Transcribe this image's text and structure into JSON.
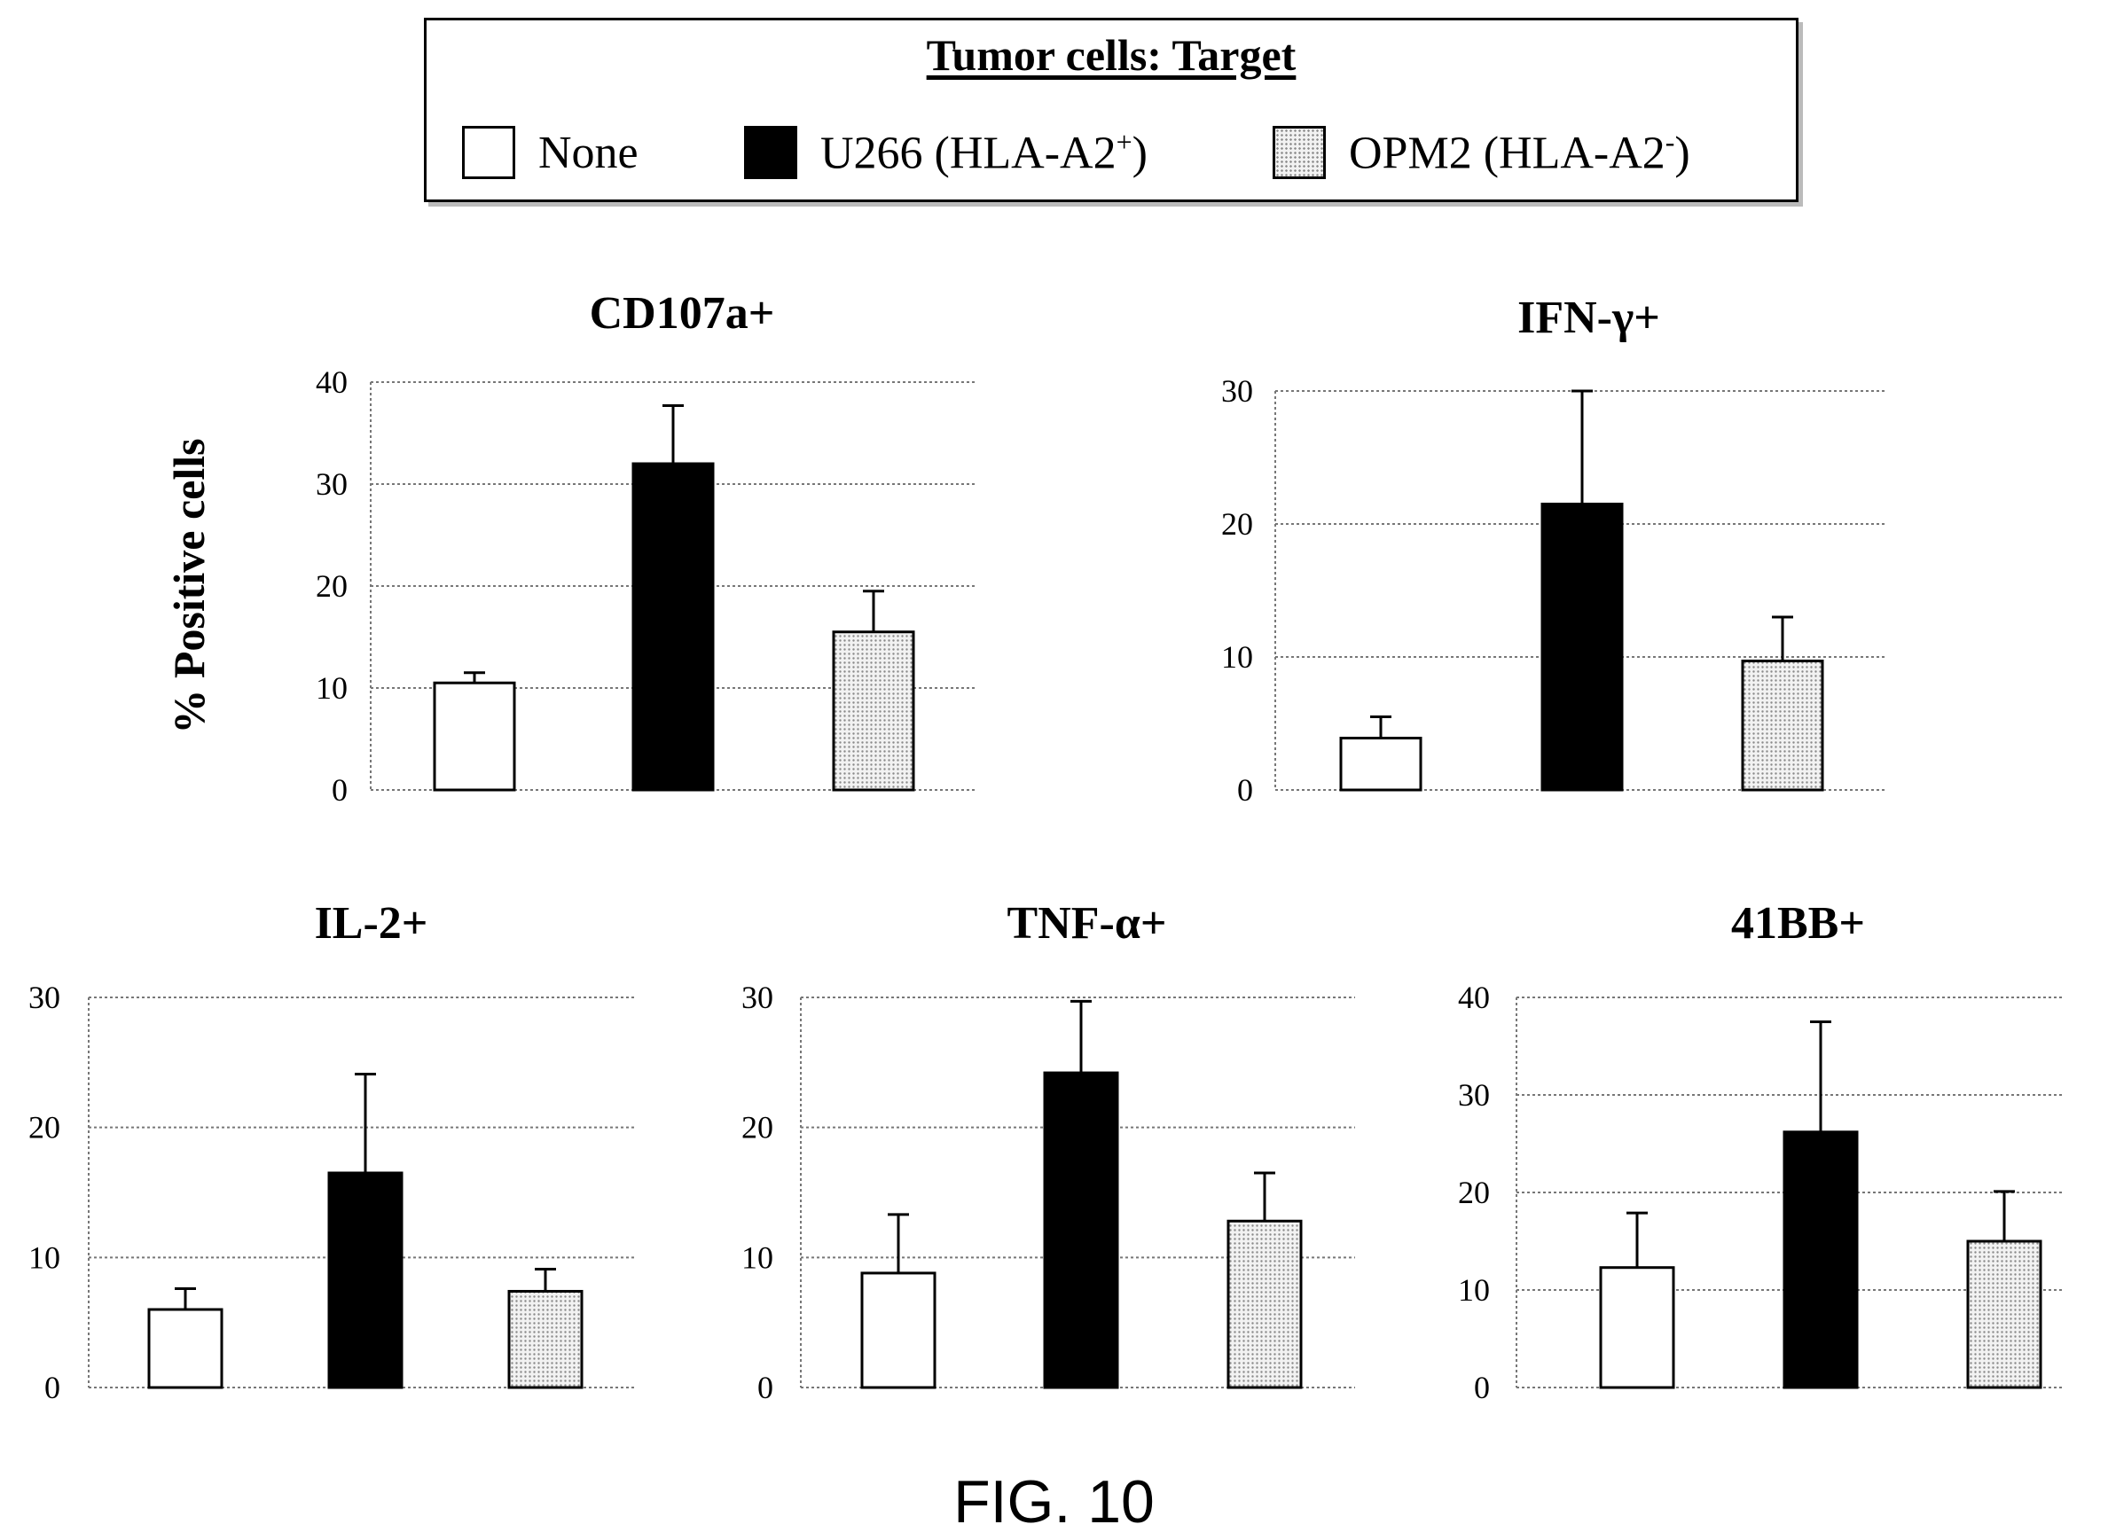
{
  "legend": {
    "title": "Tumor cells: Target",
    "entries": [
      {
        "label": "None",
        "sup": "",
        "suffix": "",
        "fill": "white"
      },
      {
        "label": "U266 (HLA-A2",
        "sup": "+",
        "suffix": ")",
        "fill": "black"
      },
      {
        "label": "OPM2 (HLA-A2",
        "sup": "-",
        "suffix": ")",
        "fill": "dotted"
      }
    ]
  },
  "caption": "FIG. 10",
  "colors": {
    "u266": "#000000",
    "none": "#ffffff",
    "opm2_base": "#f2f2f2",
    "opm2_dot": "#8a8a8a",
    "grid": "#777777"
  },
  "chart_data": [
    {
      "type": "bar",
      "title": "CD107a+",
      "ylabel": "% Positive cells",
      "categories": [
        "None",
        "U266 (HLA-A2+)",
        "OPM2 (HLA-A2-)"
      ],
      "values": [
        10.5,
        32,
        15.5
      ],
      "errors": [
        1,
        5.7,
        4
      ],
      "ylim": [
        0,
        40
      ],
      "yticks": [
        "0",
        "10",
        "20",
        "30",
        "40"
      ],
      "grid": true
    },
    {
      "type": "bar",
      "title": "IFN-γ+",
      "ylabel": "",
      "categories": [
        "None",
        "U266 (HLA-A2+)",
        "OPM2 (HLA-A2-)"
      ],
      "values": [
        3.9,
        21.5,
        9.7
      ],
      "errors": [
        1.6,
        8.5,
        3.3
      ],
      "ylim": [
        0,
        30
      ],
      "yticks": [
        "0",
        "10",
        "20",
        "30"
      ],
      "grid": true
    },
    {
      "type": "bar",
      "title": "IL-2+",
      "ylabel": "",
      "categories": [
        "None",
        "U266 (HLA-A2+)",
        "OPM2 (HLA-A2-)"
      ],
      "values": [
        6,
        16.5,
        7.4
      ],
      "errors": [
        1.6,
        7.6,
        1.7
      ],
      "ylim": [
        0,
        30
      ],
      "yticks": [
        "0",
        "10",
        "20",
        "30"
      ],
      "grid": true
    },
    {
      "type": "bar",
      "title": "TNF-α+",
      "ylabel": "",
      "categories": [
        "None",
        "U266 (HLA-A2+)",
        "OPM2 (HLA-A2-)"
      ],
      "values": [
        8.8,
        24.2,
        12.8
      ],
      "errors": [
        4.5,
        5.5,
        3.7
      ],
      "ylim": [
        0,
        30
      ],
      "yticks": [
        "0",
        "10",
        "20",
        "30"
      ],
      "grid": true
    },
    {
      "type": "bar",
      "title": "41BB+",
      "ylabel": "",
      "categories": [
        "None",
        "U266 (HLA-A2+)",
        "OPM2 (HLA-A2-)"
      ],
      "values": [
        12.3,
        26.2,
        15
      ],
      "errors": [
        5.6,
        11.3,
        5.1
      ],
      "ylim": [
        0,
        40
      ],
      "yticks": [
        "0",
        "10",
        "20",
        "30",
        "40"
      ],
      "grid": true
    }
  ]
}
